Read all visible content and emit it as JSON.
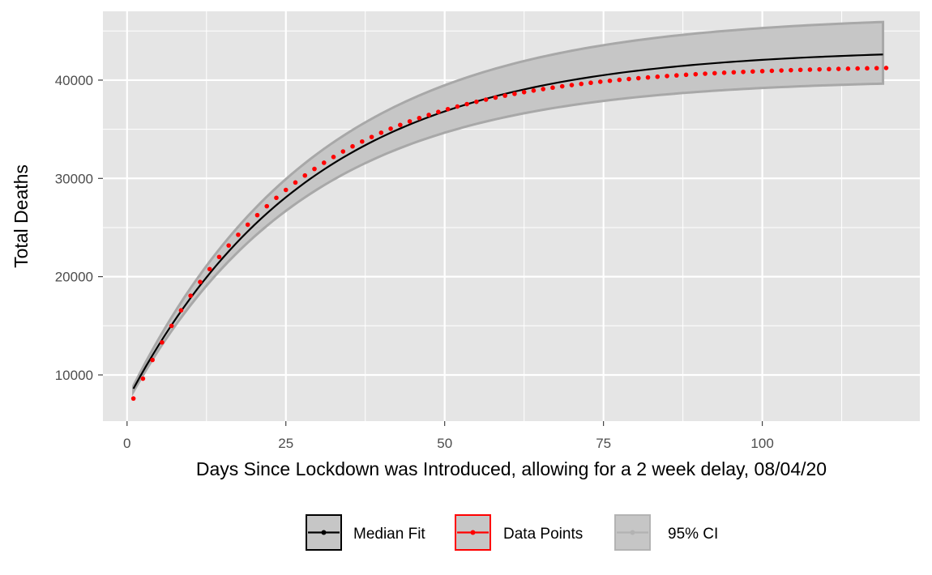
{
  "chart_data": {
    "type": "line",
    "title": "",
    "xlabel": "Days Since Lockdown was Introduced, allowing for a 2 week delay, 08/04/20",
    "ylabel": "Total Deaths",
    "xlim": [
      -3.8,
      124.8
    ],
    "ylim": [
      5300,
      47000
    ],
    "x_ticks": [
      0,
      25,
      50,
      75,
      100
    ],
    "x_tick_labels": [
      "0",
      "25",
      "50",
      "75",
      "100"
    ],
    "y_ticks": [
      10000,
      20000,
      30000,
      40000
    ],
    "y_tick_labels": [
      "10000",
      "20000",
      "30000",
      "40000"
    ],
    "grid": true,
    "legend_position": "bottom",
    "colors": {
      "panel": "#e5e5e5",
      "grid": "#ffffff",
      "median": "#000000",
      "points": "#ff0000",
      "ci_fill": "#c6c6c6",
      "ci_border": "#a8a8a8"
    },
    "model": {
      "x_start": 1,
      "x_end": 119,
      "median_asymptote": 43200,
      "median_start": 8600,
      "median_rate": 0.0345,
      "ci_upper_asymptote": 46600,
      "ci_upper_start": 8900,
      "ci_upper_rate": 0.034,
      "ci_lower_asymptote": 40100,
      "ci_lower_start": 8300,
      "ci_lower_rate": 0.036
    },
    "data_points": {
      "x_start": 1,
      "x_step": 1.5,
      "count": 80,
      "asymptote": 41500,
      "start": 7600,
      "rate": 0.041
    },
    "series": [
      {
        "name": "Median Fit",
        "type": "line",
        "color": "#000000"
      },
      {
        "name": "Data Points",
        "type": "scatter",
        "color": "#ff0000"
      },
      {
        "name": "95% CI",
        "type": "ribbon",
        "color": "#b3b3b3"
      }
    ]
  }
}
